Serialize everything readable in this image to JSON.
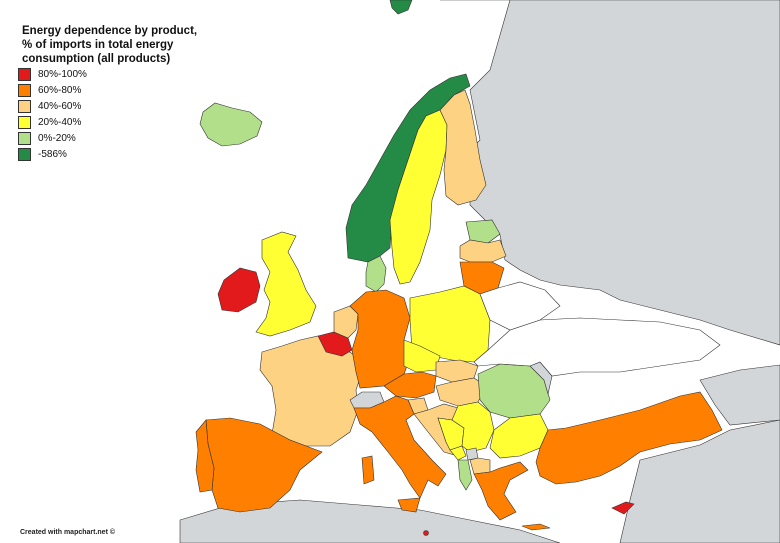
{
  "title_lines": [
    "Energy dependence by product,",
    "% of imports in total energy",
    "consumption (all products)"
  ],
  "legend": [
    {
      "label": "80%-100%",
      "color": "#e31a1c"
    },
    {
      "label": "60%-80%",
      "color": "#ff7f00"
    },
    {
      "label": "40%-60%",
      "color": "#fdd283"
    },
    {
      "label": "20%-40%",
      "color": "#ffff33"
    },
    {
      "label": "0%-20%",
      "color": "#b2df8a"
    },
    {
      "label": "-586%",
      "color": "#238b45"
    }
  ],
  "credit": "Created with mapchart.net ©",
  "colors": {
    "sea": "#ffffff",
    "non_data": "#d2d6d9",
    "border": "#222222"
  },
  "regions": [
    {
      "name": "Iceland",
      "class": "0%-20%"
    },
    {
      "name": "Norway",
      "class": "-586%"
    },
    {
      "name": "Denmark",
      "class": "0%-20%"
    },
    {
      "name": "Sweden",
      "class": "20%-40%"
    },
    {
      "name": "Finland",
      "class": "40%-60%"
    },
    {
      "name": "Estonia",
      "class": "0%-20%"
    },
    {
      "name": "Latvia",
      "class": "40%-60%"
    },
    {
      "name": "Lithuania",
      "class": "60%-80%"
    },
    {
      "name": "Ireland",
      "class": "80%-100%"
    },
    {
      "name": "United Kingdom",
      "class": "20%-40%"
    },
    {
      "name": "Netherlands",
      "class": "40%-60%"
    },
    {
      "name": "Belgium",
      "class": "80%-100%"
    },
    {
      "name": "Luxembourg",
      "class": "80%-100%"
    },
    {
      "name": "France",
      "class": "40%-60%"
    },
    {
      "name": "Germany",
      "class": "60%-80%"
    },
    {
      "name": "Poland",
      "class": "20%-40%"
    },
    {
      "name": "Czechia",
      "class": "20%-40%"
    },
    {
      "name": "Slovakia",
      "class": "40%-60%"
    },
    {
      "name": "Austria",
      "class": "60%-80%"
    },
    {
      "name": "Hungary",
      "class": "40%-60%"
    },
    {
      "name": "Slovenia",
      "class": "40%-60%"
    },
    {
      "name": "Croatia",
      "class": "40%-60%"
    },
    {
      "name": "Romania",
      "class": "0%-20%"
    },
    {
      "name": "Bulgaria",
      "class": "20%-40%"
    },
    {
      "name": "Serbia",
      "class": "20%-40%"
    },
    {
      "name": "Bosnia and Herzegovina",
      "class": "20%-40%"
    },
    {
      "name": "Montenegro",
      "class": "20%-40%"
    },
    {
      "name": "Albania",
      "class": "0%-20%"
    },
    {
      "name": "North Macedonia",
      "class": "40%-60%"
    },
    {
      "name": "Greece",
      "class": "60%-80%"
    },
    {
      "name": "Turkey",
      "class": "60%-80%"
    },
    {
      "name": "Cyprus",
      "class": "80%-100%"
    },
    {
      "name": "Malta",
      "class": "80%-100%"
    },
    {
      "name": "Italy",
      "class": "60%-80%"
    },
    {
      "name": "Spain",
      "class": "60%-80%"
    },
    {
      "name": "Portugal",
      "class": "60%-80%"
    },
    {
      "name": "Switzerland",
      "class": "no data"
    },
    {
      "name": "Moldova",
      "class": "no data"
    },
    {
      "name": "Kosovo",
      "class": "no data"
    },
    {
      "name": "Ukraine",
      "class": "no data"
    },
    {
      "name": "Belarus",
      "class": "no data"
    },
    {
      "name": "Russia",
      "class": "no data"
    }
  ]
}
